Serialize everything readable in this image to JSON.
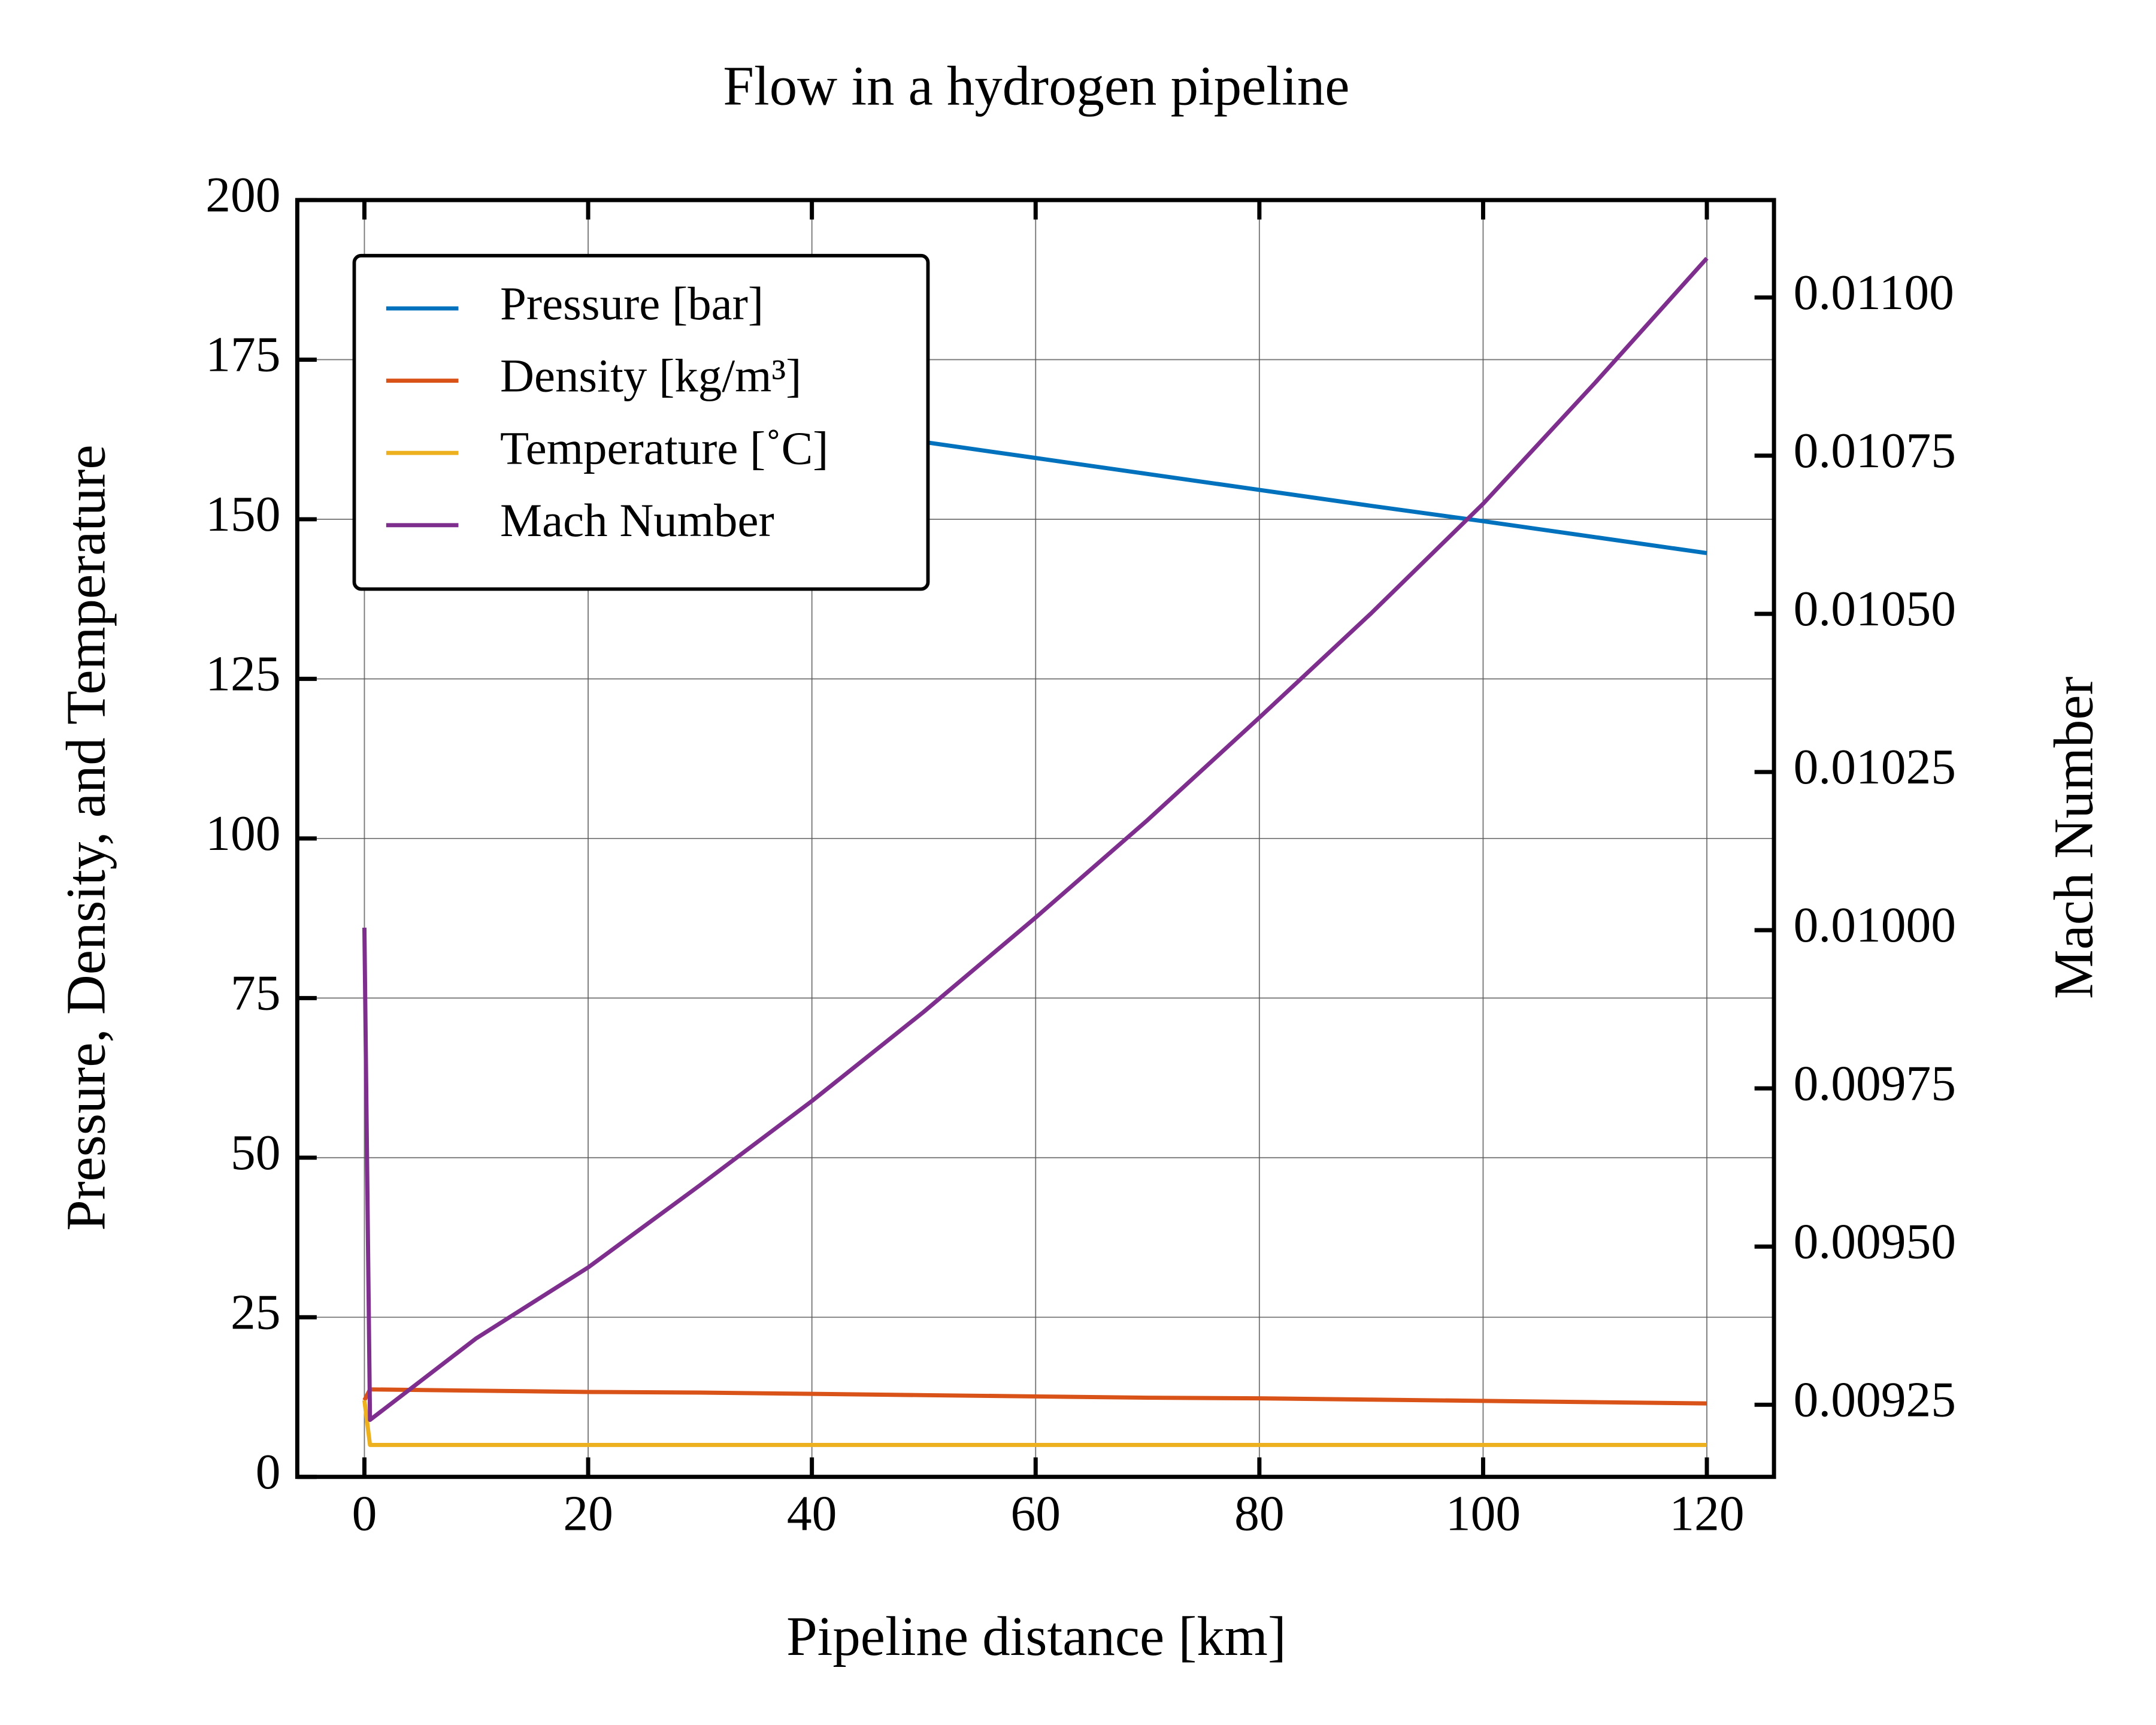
{
  "chart_data": {
    "type": "line",
    "title": "Flow in a hydrogen pipeline",
    "xlabel": "Pipeline distance [km]",
    "ylabel": "Pressure, Density, and Temperature",
    "y2label": "Mach Number",
    "x": [
      0,
      0.5,
      10,
      20,
      30,
      40,
      50,
      60,
      70,
      80,
      90,
      100,
      110,
      120
    ],
    "series": [
      {
        "name": "Pressure [bar]",
        "color": "#0072bd",
        "values": [
          174.5,
          174.4,
          172,
          169.5,
          167,
          164.6,
          162.1,
          159.6,
          157.1,
          154.6,
          152.1,
          149.7,
          147.2,
          144.7
        ]
      },
      {
        "name": "Density [kg/m³]",
        "color": "#d95319",
        "values": [
          12,
          13.7,
          13.5,
          13.3,
          13.2,
          13,
          12.8,
          12.6,
          12.4,
          12.3,
          12.1,
          11.9,
          11.7,
          11.5
        ]
      },
      {
        "name": "Temperature [˚C]",
        "color": "#edb120",
        "values": [
          12,
          5,
          5,
          5,
          5,
          5,
          5,
          5,
          5,
          5,
          5,
          5,
          5,
          5
        ]
      },
      {
        "name": "Mach Number",
        "color": "#7e2f8e",
        "axis": "y2",
        "values": [
          0.010004,
          0.009226,
          0.009355,
          0.009467,
          0.009597,
          0.00973,
          0.009871,
          0.01002,
          0.010174,
          0.010336,
          0.010501,
          0.010674,
          0.010865,
          0.011062
        ]
      }
    ],
    "xlim": [
      -6,
      126
    ],
    "xticks": [
      0,
      20,
      40,
      60,
      80,
      100,
      120
    ],
    "ylim": [
      0,
      200
    ],
    "yticks": [
      0,
      25,
      50,
      75,
      100,
      125,
      150,
      175,
      200
    ],
    "y2lim": [
      0.009136,
      0.011154
    ],
    "y2ticks": [
      0.00925,
      {
        "value": 0.0095,
        "label": "0.00950"
      },
      0.00975,
      {
        "value": 0.01,
        "label": "0.01000"
      },
      0.01025,
      {
        "value": 0.0105,
        "label": "0.01050"
      },
      0.01075,
      {
        "value": 0.011,
        "label": "0.01100"
      }
    ],
    "grid": true,
    "legend": "upper left"
  }
}
